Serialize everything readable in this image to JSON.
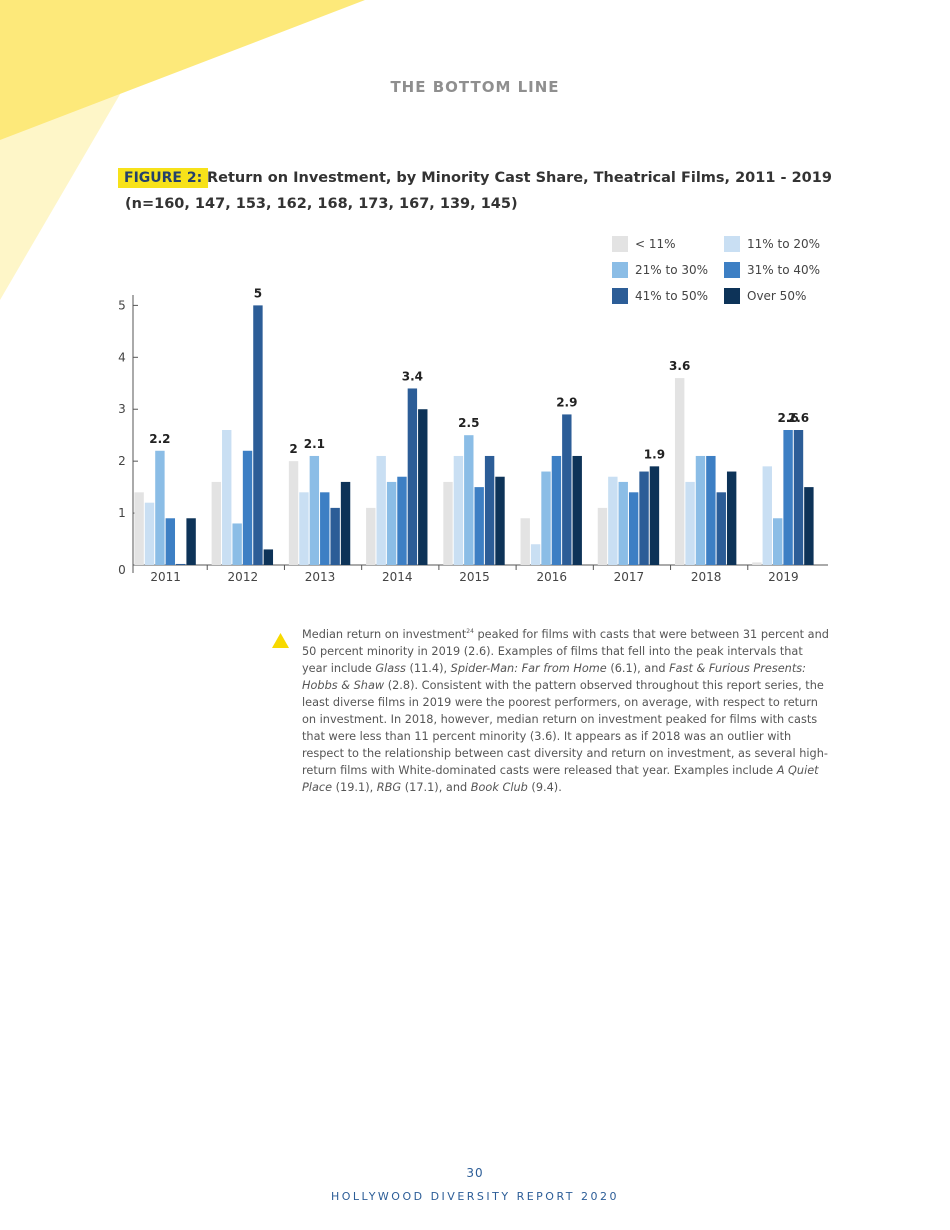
{
  "header": "THE BOTTOM LINE",
  "chart_data": {
    "type": "bar",
    "figure_label": "FIGURE 2:",
    "title": "Return on Investment, by Minority Cast Share, Theatrical Films, 2011 - 2019",
    "subtitle": "(n=160, 147, 153, 162, 168, 173, 167, 139, 145)",
    "categories": [
      "2011",
      "2012",
      "2013",
      "2014",
      "2015",
      "2016",
      "2017",
      "2018",
      "2019"
    ],
    "ylim": [
      0,
      5.2
    ],
    "yticks": [
      0,
      1,
      2,
      3,
      4,
      5
    ],
    "grid": false,
    "series": [
      {
        "name": "< 11%",
        "color": "#e3e3e3",
        "values": [
          1.4,
          1.6,
          2,
          1.1,
          1.6,
          0.9,
          1.1,
          3.6,
          0.05
        ],
        "value_labels": [
          null,
          null,
          "2",
          null,
          null,
          null,
          null,
          "3.6",
          null
        ]
      },
      {
        "name": "11% to 20%",
        "color": "#c9dff3",
        "values": [
          1.2,
          2.6,
          1.4,
          2.1,
          2.1,
          0.4,
          1.7,
          1.6,
          1.9
        ],
        "value_labels": [
          null,
          null,
          null,
          null,
          null,
          null,
          null,
          null,
          null
        ]
      },
      {
        "name": "21% to 30%",
        "color": "#8bbde6",
        "values": [
          2.2,
          0.8,
          2.1,
          1.6,
          2.5,
          1.8,
          1.6,
          2.1,
          0.9
        ],
        "value_labels": [
          "2.2",
          null,
          "2.1",
          null,
          "2.5",
          null,
          null,
          null,
          null
        ]
      },
      {
        "name": "31% to 40%",
        "color": "#3d7fc4",
        "values": [
          0.9,
          2.2,
          1.4,
          1.7,
          1.5,
          2.1,
          1.4,
          2.1,
          2.6
        ],
        "value_labels": [
          null,
          null,
          null,
          null,
          null,
          null,
          null,
          null,
          "2.6"
        ]
      },
      {
        "name": "41% to 50%",
        "color": "#2c5d97",
        "values": [
          0.02,
          5,
          1.1,
          3.4,
          2.1,
          2.9,
          1.8,
          1.4,
          2.6
        ],
        "value_labels": [
          null,
          "5",
          null,
          "3.4",
          null,
          "2.9",
          null,
          null,
          "2.6"
        ]
      },
      {
        "name": "Over 50%",
        "color": "#0d3358",
        "values": [
          0.9,
          0.3,
          1.6,
          3.0,
          1.7,
          2.1,
          1.9,
          1.8,
          1.5
        ],
        "value_labels": [
          null,
          null,
          null,
          null,
          null,
          null,
          "1.9",
          null,
          null
        ]
      }
    ]
  },
  "body": [
    {
      "text": "Median return on investment"
    },
    {
      "text": "24",
      "style": "sup"
    },
    {
      "text": " peaked for films with casts that were between 31 percent and 50 percent minority in 2019 (2.6).  Examples of films that fell into the peak intervals that year include "
    },
    {
      "text": "Glass",
      "style": "italic"
    },
    {
      "text": " (11.4), "
    },
    {
      "text": "Spider-Man:  Far from Home",
      "style": "italic"
    },
    {
      "text": " (6.1), and "
    },
    {
      "text": "Fast & Furious Presents:  Hobbs & Shaw",
      "style": "italic"
    },
    {
      "text": " (2.8).  Consistent with the pattern observed throughout this report series, the least diverse films in 2019 were the poorest performers, on average, with respect to return on investment.  In 2018, however, median return on investment peaked for films with casts that were less than 11 percent minority (3.6).  It appears as if 2018 was an outlier with respect to the relationship between cast diversity and return on investment, as several high-return films with White-dominated casts were released that year.  Examples include "
    },
    {
      "text": "A Quiet Place",
      "style": "italic"
    },
    {
      "text": " (19.1), "
    },
    {
      "text": "RBG",
      "style": "italic"
    },
    {
      "text": " (17.1), and "
    },
    {
      "text": "Book Club",
      "style": "italic"
    },
    {
      "text": " (9.4)."
    }
  ],
  "footer": {
    "page": "30",
    "report": "HOLLYWOOD DIVERSITY REPORT 2020"
  }
}
